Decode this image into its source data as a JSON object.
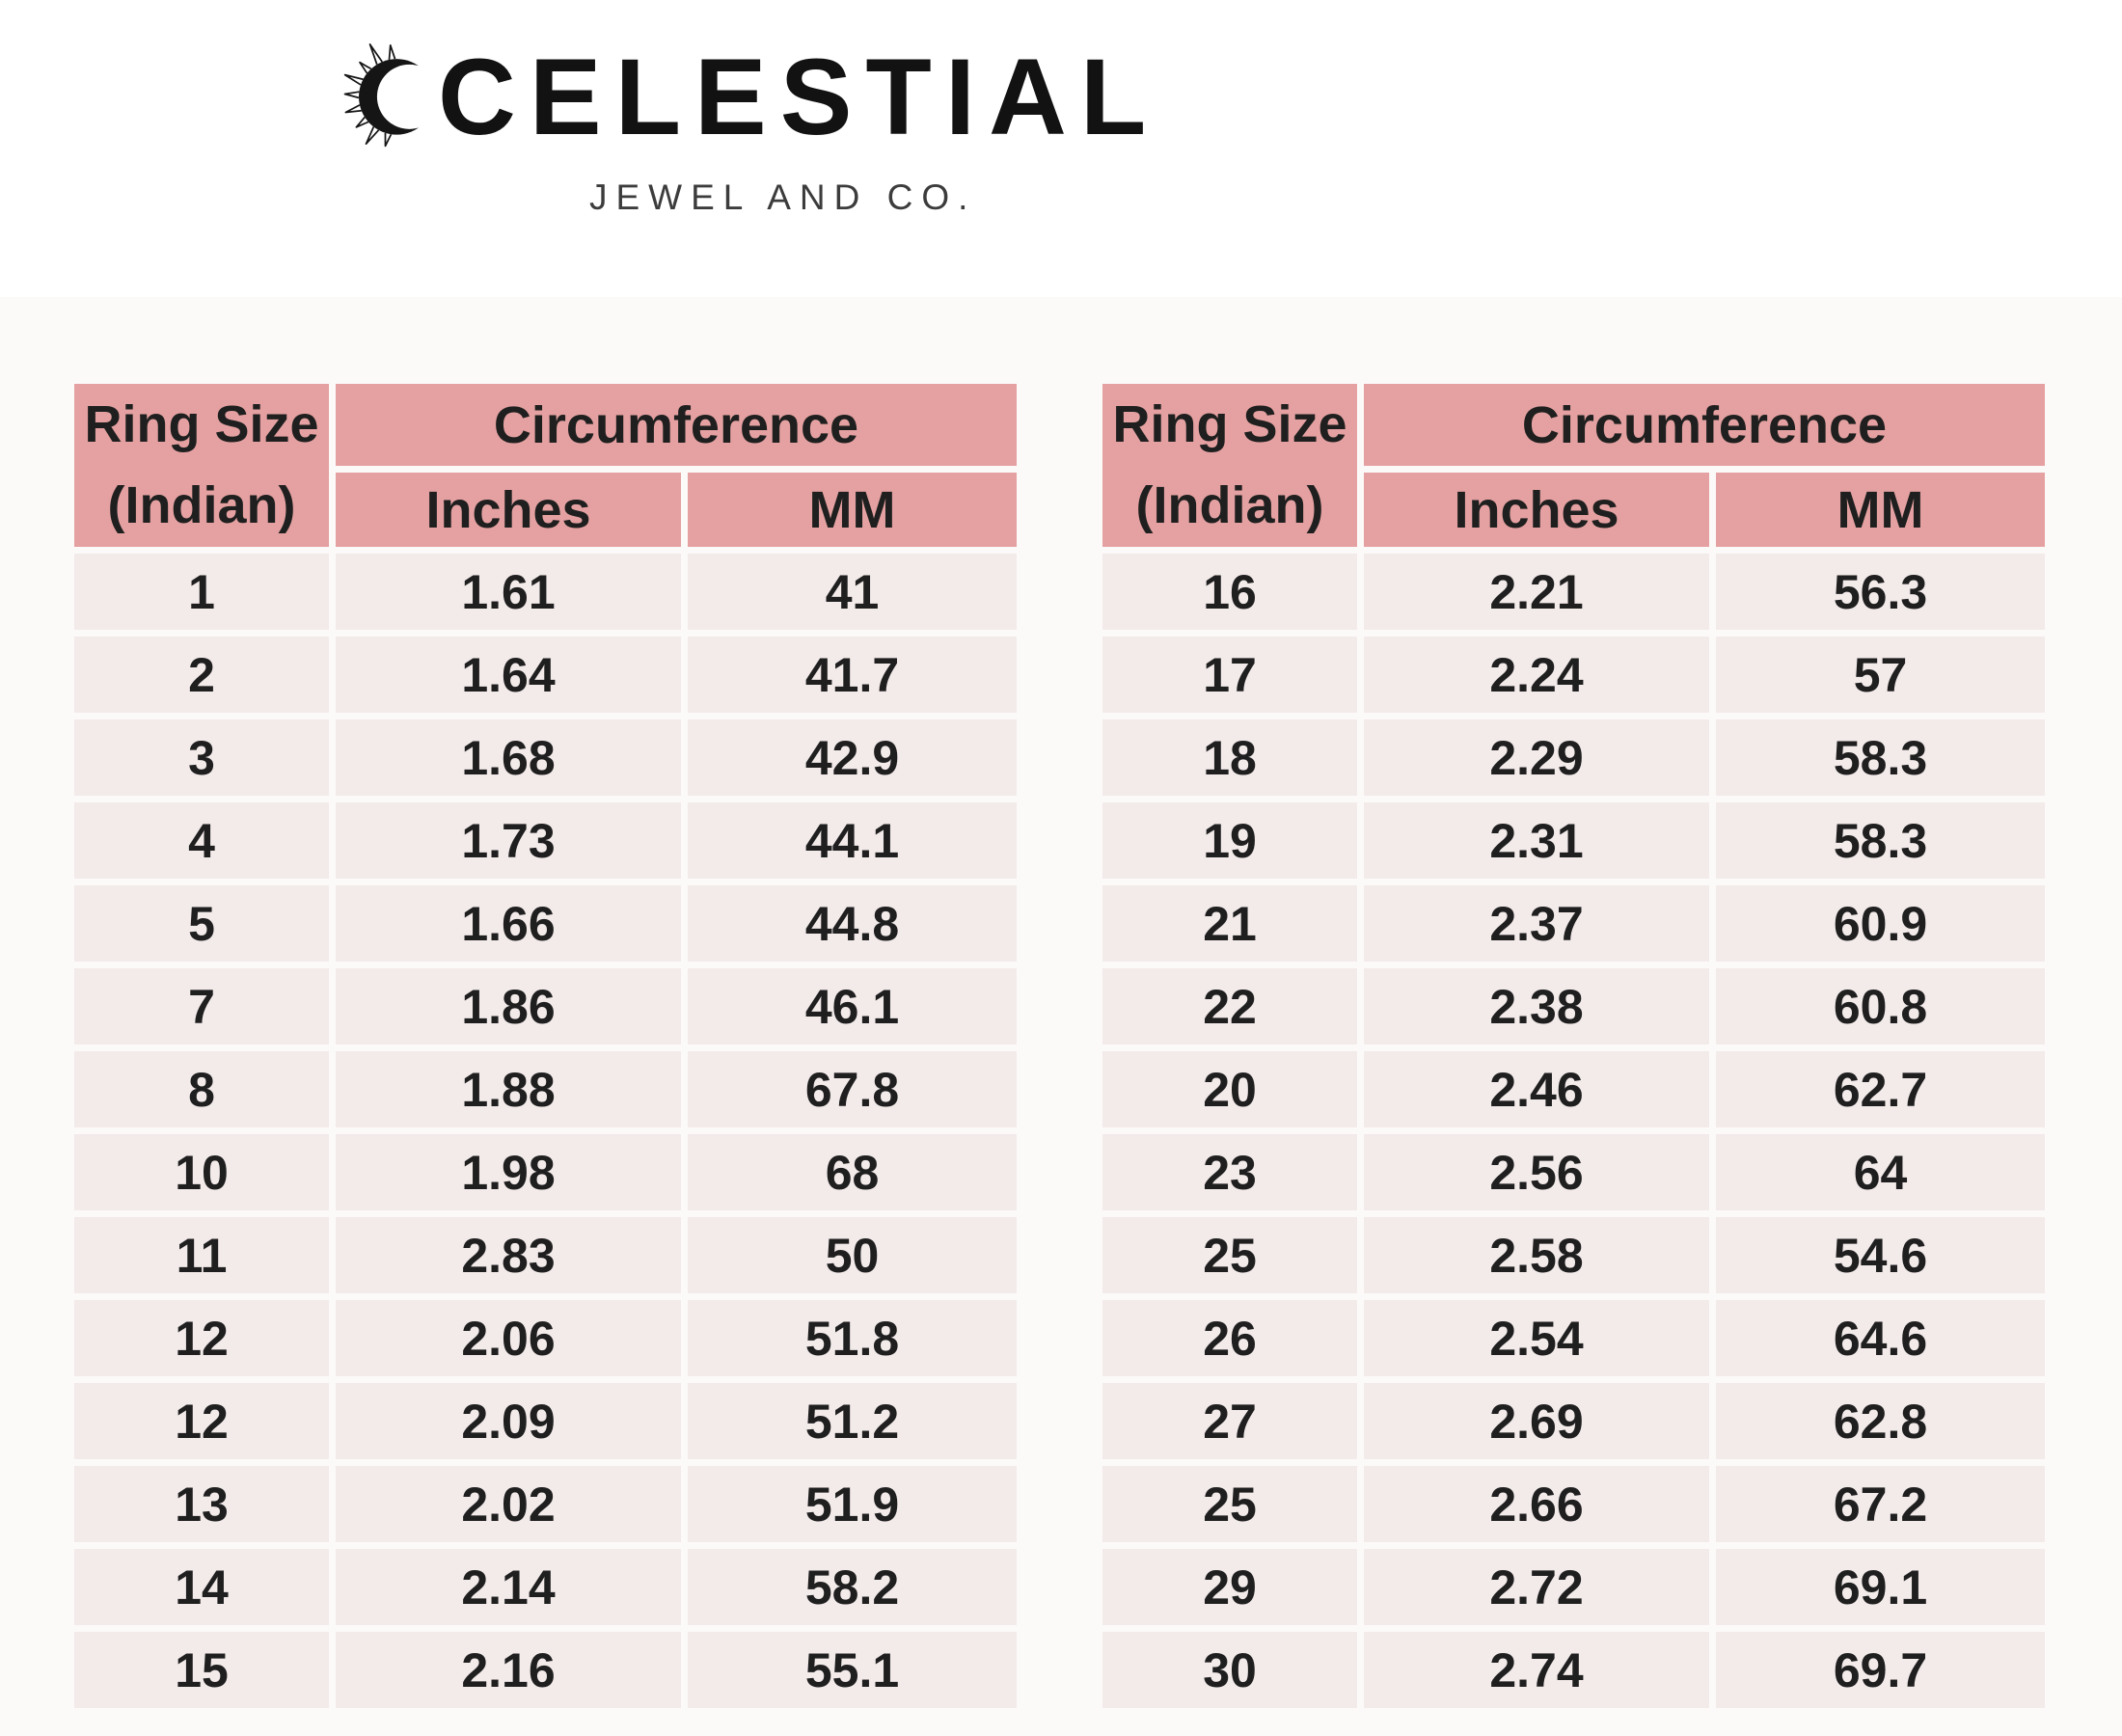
{
  "logo": {
    "brand": "CELESTIAL",
    "tagline": "JEWEL AND CO.",
    "icon": "sun-crescent-icon"
  },
  "colors": {
    "header_bg": "#e5a1a1",
    "row_bg": "#f3eaea",
    "text": "#1f1f1f"
  },
  "tables": [
    {
      "id": "left",
      "header": {
        "ring_size": "Ring Size",
        "ring_size_sub": "(Indian)",
        "circumference": "Circumference",
        "inches": "Inches",
        "mm": "MM"
      },
      "rows": [
        [
          "1",
          "1.61",
          "41"
        ],
        [
          "2",
          "1.64",
          "41.7"
        ],
        [
          "3",
          "1.68",
          "42.9"
        ],
        [
          "4",
          "1.73",
          "44.1"
        ],
        [
          "5",
          "1.66",
          "44.8"
        ],
        [
          "7",
          "1.86",
          "46.1"
        ],
        [
          "8",
          "1.88",
          "67.8"
        ],
        [
          "10",
          "1.98",
          "68"
        ],
        [
          "11",
          "2.83",
          "50"
        ],
        [
          "12",
          "2.06",
          "51.8"
        ],
        [
          "12",
          "2.09",
          "51.2"
        ],
        [
          "13",
          "2.02",
          "51.9"
        ],
        [
          "14",
          "2.14",
          "58.2"
        ],
        [
          "15",
          "2.16",
          "55.1"
        ]
      ]
    },
    {
      "id": "right",
      "header": {
        "ring_size": "Ring Size",
        "ring_size_sub": "(Indian)",
        "circumference": "Circumference",
        "inches": "Inches",
        "mm": "MM"
      },
      "rows": [
        [
          "16",
          "2.21",
          "56.3"
        ],
        [
          "17",
          "2.24",
          "57"
        ],
        [
          "18",
          "2.29",
          "58.3"
        ],
        [
          "19",
          "2.31",
          "58.3"
        ],
        [
          "21",
          "2.37",
          "60.9"
        ],
        [
          "22",
          "2.38",
          "60.8"
        ],
        [
          "20",
          "2.46",
          "62.7"
        ],
        [
          "23",
          "2.56",
          "64"
        ],
        [
          "25",
          "2.58",
          "54.6"
        ],
        [
          "26",
          "2.54",
          "64.6"
        ],
        [
          "27",
          "2.69",
          "62.8"
        ],
        [
          "25",
          "2.66",
          "67.2"
        ],
        [
          "29",
          "2.72",
          "69.1"
        ],
        [
          "30",
          "2.74",
          "69.7"
        ]
      ]
    }
  ]
}
